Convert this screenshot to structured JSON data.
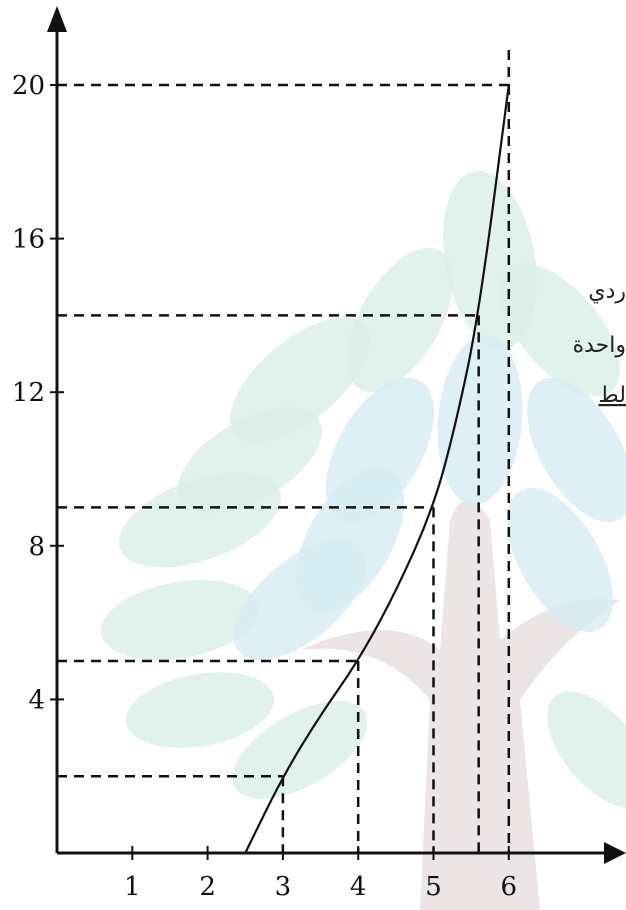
{
  "chart_data": {
    "type": "line",
    "x_ticks": [
      1,
      2,
      3,
      4,
      5,
      6
    ],
    "y_ticks": [
      4,
      8,
      12,
      16,
      20
    ],
    "xlim": [
      0,
      6.5
    ],
    "ylim": [
      0,
      20
    ],
    "grid": false,
    "series": [
      {
        "color": "#111111",
        "x": [
          2.5,
          3,
          3.5,
          4,
          4.5,
          5,
          5.3,
          5.6,
          6
        ],
        "y": [
          0,
          2,
          3.6,
          5,
          6.8,
          9,
          11.2,
          14,
          20
        ]
      }
    ],
    "reference_lines": [
      {
        "x": 3,
        "y": 2
      },
      {
        "x": 4,
        "y": 5
      },
      {
        "x": 5,
        "y": 9
      },
      {
        "x": 5.6,
        "y": 14
      },
      {
        "x": 6,
        "y": 20
      }
    ]
  },
  "side_text": [
    "ردي",
    "واحدة",
    "لط"
  ],
  "watermark": {
    "leaf_color_green": "#dcefe7",
    "leaf_color_blue": "#d8ecf4",
    "trunk_color": "#e6dede"
  }
}
